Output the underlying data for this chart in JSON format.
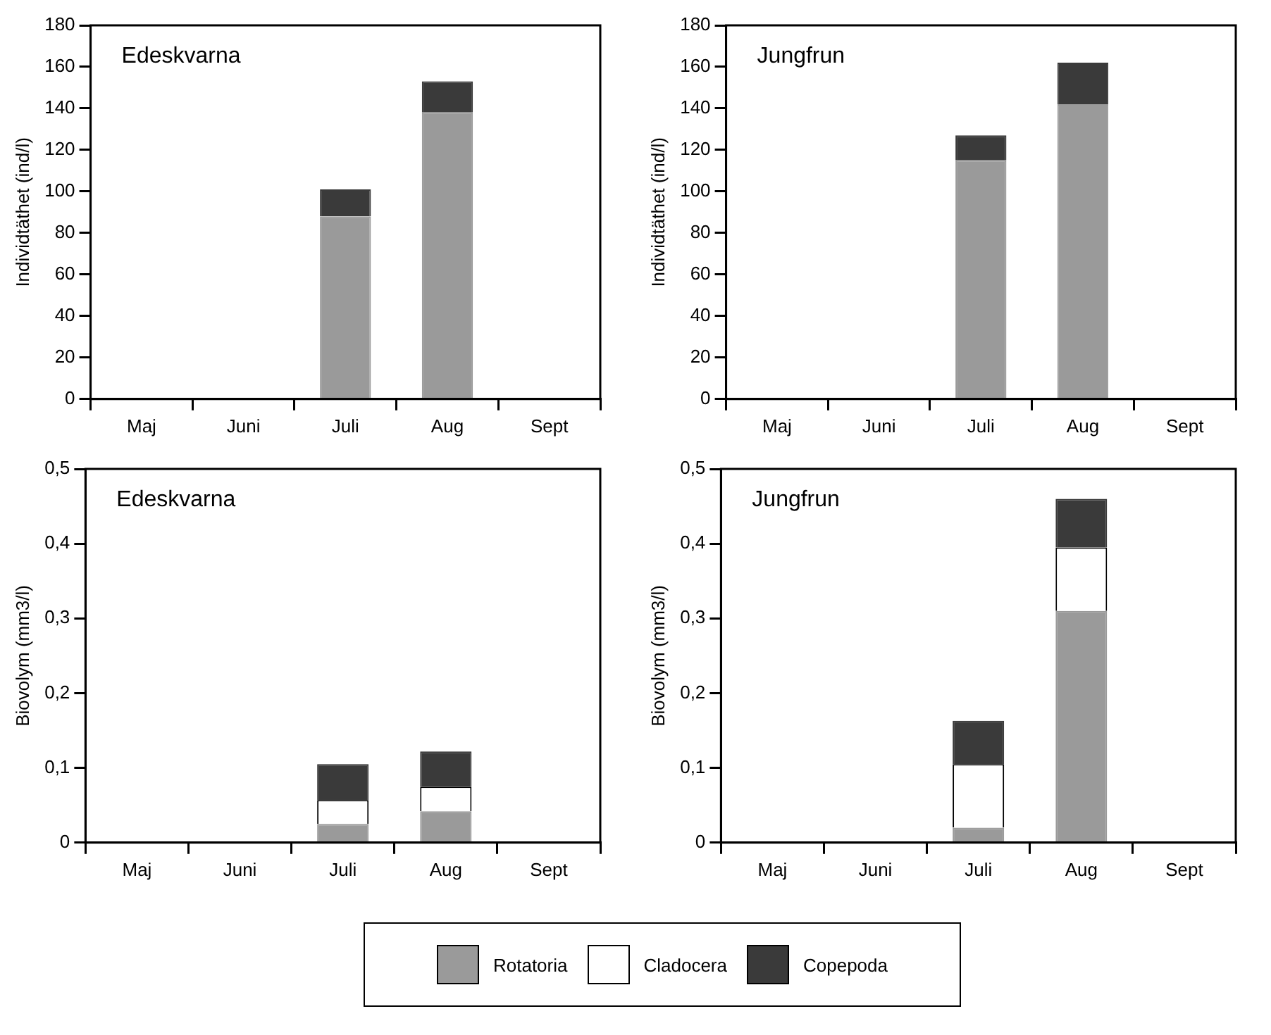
{
  "chart_data": [
    {
      "type": "bar",
      "title": "Edeskvarna",
      "ylabel": "Individtäthet (ind/l)",
      "categories": [
        "Maj",
        "Juni",
        "Juli",
        "Aug",
        "Sept"
      ],
      "stacked": true,
      "ylim": [
        0,
        180
      ],
      "yticks": [
        0,
        20,
        40,
        60,
        80,
        100,
        120,
        140,
        160,
        180
      ],
      "grid": false,
      "legend": "bottom",
      "series": [
        {
          "name": "Rotatoria",
          "color": "#9a9a9a",
          "values": [
            0,
            0,
            88,
            138,
            0
          ]
        },
        {
          "name": "Cladocera",
          "color": "#ffffff",
          "values": [
            0,
            0,
            0,
            0,
            0
          ]
        },
        {
          "name": "Copepoda",
          "color": "#3a3a3a",
          "values": [
            0,
            0,
            13,
            15,
            0
          ]
        }
      ]
    },
    {
      "type": "bar",
      "title": "Jungfrun",
      "ylabel": "Individtäthet (ind/l)",
      "categories": [
        "Maj",
        "Juni",
        "Juli",
        "Aug",
        "Sept"
      ],
      "stacked": true,
      "ylim": [
        0,
        180
      ],
      "yticks": [
        0,
        20,
        40,
        60,
        80,
        100,
        120,
        140,
        160,
        180
      ],
      "grid": false,
      "series": [
        {
          "color": "#9a9a9a",
          "values": [
            0,
            0,
            115,
            142,
            0
          ]
        },
        {
          "color": "#ffffff",
          "values": [
            0,
            0,
            0,
            0,
            0
          ]
        },
        {
          "color": "#3a3a3a",
          "values": [
            0,
            0,
            12,
            20,
            0
          ]
        }
      ]
    },
    {
      "type": "bar",
      "title": "Edeskvarna",
      "ylabel": "Biovolym (mm3/l)",
      "categories": [
        "Maj",
        "Juni",
        "Juli",
        "Aug",
        "Sept"
      ],
      "stacked": true,
      "ylim": [
        0,
        0.5
      ],
      "yticks": [
        {
          "value": 0,
          "label": "0"
        },
        {
          "value": 0.1,
          "label": "0,1"
        },
        {
          "value": 0.2,
          "label": "0,2"
        },
        {
          "value": 0.3,
          "label": "0,3"
        },
        {
          "value": 0.4,
          "label": "0,4"
        },
        {
          "value": 0.5,
          "label": "0,5"
        }
      ],
      "grid": false,
      "series": [
        {
          "color": "#9a9a9a",
          "values": [
            0,
            null,
            0.025,
            0.042,
            0
          ]
        },
        {
          "color": "#ffffff",
          "values": [
            0,
            0,
            0.032,
            0.033,
            0
          ]
        },
        {
          "color": "#3a3a3a",
          "values": [
            0,
            0,
            0.048,
            0.047,
            0
          ]
        }
      ]
    },
    {
      "type": "bar",
      "title": "Jungfrun",
      "ylabel": "Biovolym (mm3/l)",
      "categories": [
        "Maj",
        "Juni",
        "Juli",
        "Aug",
        "Sept"
      ],
      "stacked": true,
      "ylim": [
        0,
        0.5
      ],
      "yticks": [
        {
          "value": 0,
          "label": "0"
        },
        {
          "value": 0.1,
          "label": "0,1"
        },
        {
          "value": 0.2,
          "label": "0,2"
        },
        {
          "value": 0.3,
          "label": "0,3"
        },
        {
          "value": 0.4,
          "label": "0,4"
        },
        {
          "value": 0.5,
          "label": "0,5"
        }
      ],
      "grid": false,
      "series": [
        {
          "color": "#9a9a9a",
          "values": [
            0,
            0,
            0.02,
            0.31,
            0
          ]
        },
        {
          "color": "#ffffff",
          "values": [
            0,
            0,
            0.085,
            0.085,
            0
          ]
        },
        {
          "color": "#3a3a3a",
          "values": [
            0,
            0,
            0.058,
            0.065,
            0
          ]
        }
      ]
    }
  ]
}
